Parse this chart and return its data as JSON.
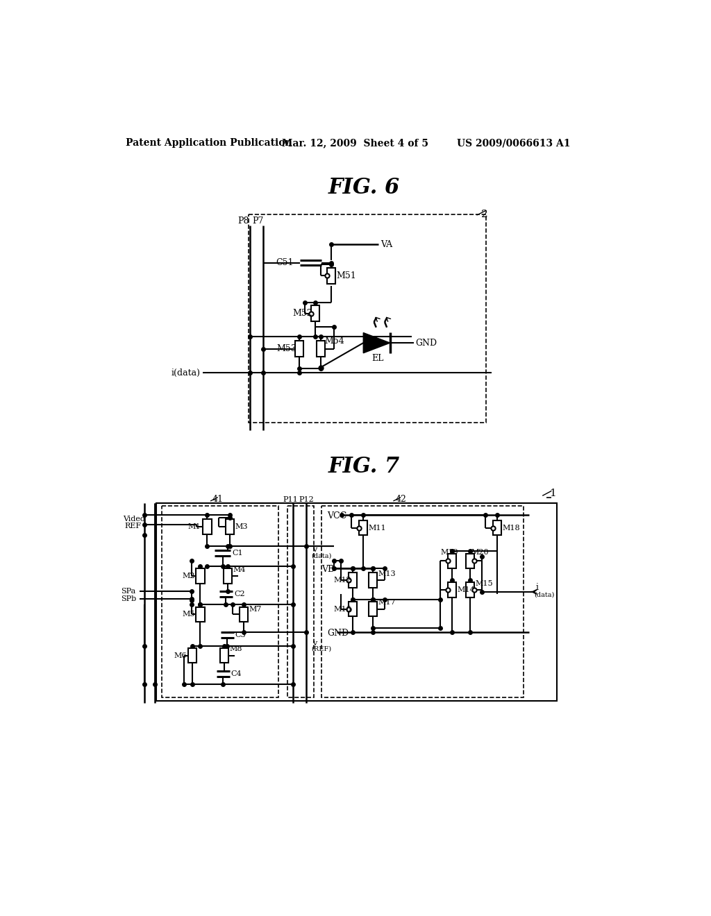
{
  "bg_color": "#ffffff",
  "header_left": "Patent Application Publication",
  "header_mid": "Mar. 12, 2009  Sheet 4 of 5",
  "header_right": "US 2009/0066613 A1",
  "fig6_title": "FIG. 6",
  "fig7_title": "FIG. 7"
}
